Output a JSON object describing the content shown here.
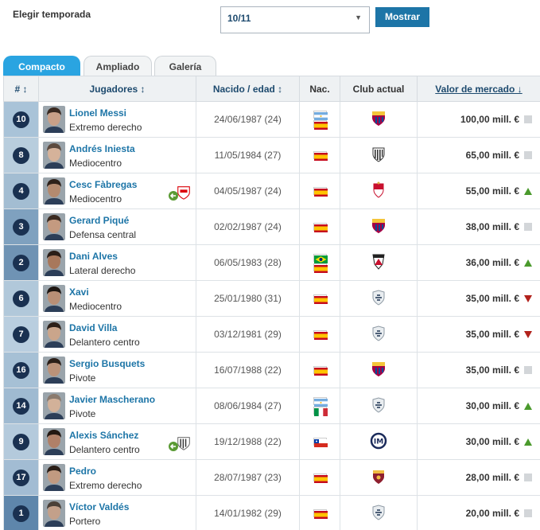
{
  "filter": {
    "season_label": "Elegir temporada",
    "season_value": "10/11",
    "show_button": "Mostrar"
  },
  "tabs": [
    "Compacto",
    "Ampliado",
    "Galería"
  ],
  "table": {
    "headers": {
      "number": "# ↕",
      "players": "Jugadores ↕",
      "dob_age": "Nacido / edad ↕",
      "nationality": "Nac.",
      "current_club": "Club actual",
      "market_value": "Valor de mercado ↓"
    },
    "rows": [
      {
        "number": "10",
        "name": "Lionel Messi",
        "position": "Extremo derecho",
        "dob_age": "24/06/1987 (24)",
        "nationalities": [
          "argentina",
          "spain"
        ],
        "club": "barcelona-crest",
        "value": "100,00 mill. €",
        "trend": "same",
        "transfer": ""
      },
      {
        "number": "8",
        "name": "Andrés Iniesta",
        "position": "Mediocentro",
        "dob_age": "11/05/1984 (27)",
        "nationalities": [
          "spain"
        ],
        "club": "striped-crest",
        "value": "65,00 mill. €",
        "trend": "same",
        "transfer": ""
      },
      {
        "number": "4",
        "name": "Cesc Fàbregas",
        "position": "Mediocentro",
        "dob_age": "04/05/1987 (24)",
        "nationalities": [
          "spain"
        ],
        "club": "monaco-crest",
        "value": "55,00 mill. €",
        "trend": "up",
        "transfer": "arsenal-crest"
      },
      {
        "number": "3",
        "name": "Gerard Piqué",
        "position": "Defensa central",
        "dob_age": "02/02/1987 (24)",
        "nationalities": [
          "spain"
        ],
        "club": "barcelona-crest",
        "value": "38,00 mill. €",
        "trend": "same",
        "transfer": ""
      },
      {
        "number": "2",
        "name": "Dani Alves",
        "position": "Lateral derecho",
        "dob_age": "06/05/1983 (28)",
        "nationalities": [
          "brazil",
          "spain"
        ],
        "club": "saopaulo-crest",
        "value": "36,00 mill. €",
        "trend": "up",
        "transfer": ""
      },
      {
        "number": "6",
        "name": "Xavi",
        "position": "Mediocentro",
        "dob_age": "25/01/1980 (31)",
        "nationalities": [
          "spain"
        ],
        "club": "retired-crest",
        "value": "35,00 mill. €",
        "trend": "down",
        "transfer": ""
      },
      {
        "number": "7",
        "name": "David Villa",
        "position": "Delantero centro",
        "dob_age": "03/12/1981 (29)",
        "nationalities": [
          "spain"
        ],
        "club": "retired-crest",
        "value": "35,00 mill. €",
        "trend": "down",
        "transfer": ""
      },
      {
        "number": "16",
        "name": "Sergio Busquets",
        "position": "Pivote",
        "dob_age": "16/07/1988 (22)",
        "nationalities": [
          "spain"
        ],
        "club": "barcelona-crest",
        "value": "35,00 mill. €",
        "trend": "same",
        "transfer": ""
      },
      {
        "number": "14",
        "name": "Javier Mascherano",
        "position": "Pivote",
        "dob_age": "08/06/1984 (27)",
        "nationalities": [
          "argentina",
          "italy"
        ],
        "club": "retired-crest",
        "value": "30,00 mill. €",
        "trend": "up",
        "transfer": ""
      },
      {
        "number": "9",
        "name": "Alexis Sánchez",
        "position": "Delantero centro",
        "dob_age": "19/12/1988 (22)",
        "nationalities": [
          "chile"
        ],
        "club": "inter-crest",
        "value": "30,00 mill. €",
        "trend": "up",
        "transfer": "udinese-crest"
      },
      {
        "number": "17",
        "name": "Pedro",
        "position": "Extremo derecho",
        "dob_age": "28/07/1987 (23)",
        "nationalities": [
          "spain"
        ],
        "club": "roma-crest",
        "value": "28,00 mill. €",
        "trend": "same",
        "transfer": ""
      },
      {
        "number": "1",
        "name": "Víctor Valdés",
        "position": "Portero",
        "dob_age": "14/01/1982 (29)",
        "nationalities": [
          "spain"
        ],
        "club": "retired-crest",
        "value": "20,00 mill. €",
        "trend": "same",
        "transfer": ""
      }
    ]
  },
  "colors": {
    "accent": "#1d75a7",
    "tab_active": "#2aa4e1",
    "badge": "#1a3151",
    "trend_up": "#4a9a2c",
    "trend_down": "#b2221c"
  }
}
